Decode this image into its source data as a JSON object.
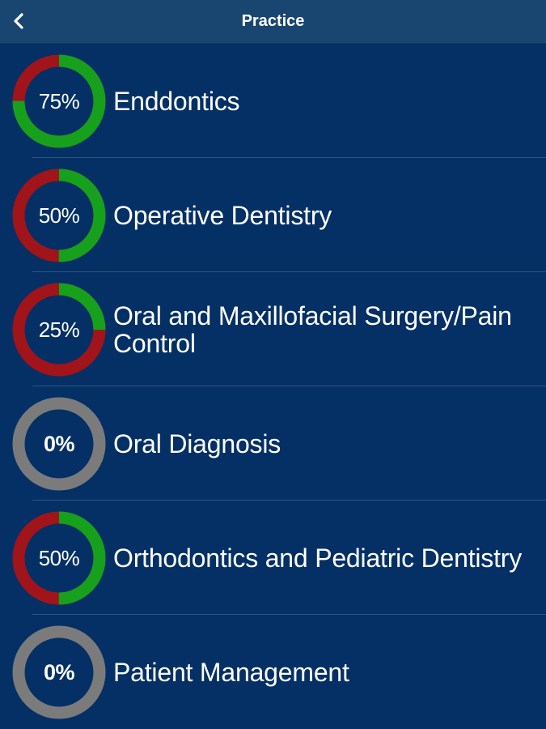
{
  "nav": {
    "title": "Practice",
    "back_icon": "chevron-left-icon"
  },
  "colors": {
    "background": "#053065",
    "nav_bar": "#184670",
    "progress_complete": "#16a01c",
    "progress_remaining": "#a11419",
    "progress_empty": "#7b7b7b"
  },
  "subjects": [
    {
      "title": "Enddontics",
      "percent_label": "75%",
      "progress": 0.75,
      "started": true
    },
    {
      "title": "Operative Dentistry",
      "percent_label": "50%",
      "progress": 0.5,
      "started": true
    },
    {
      "title": "Oral and Maxillofacial Surgery/Pain Control",
      "percent_label": "25%",
      "progress": 0.25,
      "started": true
    },
    {
      "title": "Oral Diagnosis",
      "percent_label": "0%",
      "progress": 0,
      "started": false
    },
    {
      "title": "Orthodontics and Pediatric Dentistry",
      "percent_label": "50%",
      "progress": 0.5,
      "started": true
    },
    {
      "title": "Patient Management",
      "percent_label": "0%",
      "progress": 0,
      "started": false
    }
  ]
}
